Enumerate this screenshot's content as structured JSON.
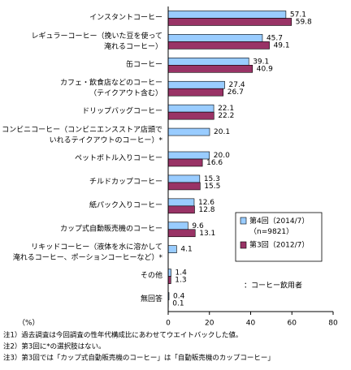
{
  "chart_data": {
    "type": "hbar",
    "categories": [
      "インスタントコーヒー",
      "レギュラーコーヒー（挽いた豆を使って\n淹れるコーヒー）",
      "缶コーヒー",
      "カフェ・飲食店などのコーヒー\n（テイクアウト含む）",
      "ドリップバッグコーヒー",
      "コンビニコーヒー（コンビニエンスストア店頭で\nいれるテイクアウトのコーヒー）*",
      "ペットボトル入りコーヒー",
      "チルドカップコーヒー",
      "紙パック入りコーヒー",
      "カップ式自動販売機のコーヒー",
      "リキッドコーヒー（液体を水に溶かして\n淹れるコーヒー、ポーションコーヒーなど）*",
      "その他",
      "無回答"
    ],
    "series": [
      {
        "name": "第4回（2014/7）\n（n=9821）",
        "color": "#99ccff",
        "values": [
          57.1,
          45.7,
          39.1,
          27.4,
          22.1,
          20.1,
          20.0,
          15.3,
          12.6,
          9.6,
          4.1,
          1.4,
          0.4
        ],
        "value_labels": [
          "57.1",
          "45.7",
          "39.1",
          "27.4",
          "22.1",
          "20.1",
          "20.0",
          "15.3",
          "12.6",
          "9.6",
          "4.1",
          "1.4",
          "0.4"
        ]
      },
      {
        "name": "第3回（2012/7）",
        "color": "#993366",
        "values": [
          59.8,
          49.1,
          40.9,
          26.7,
          22.2,
          null,
          16.6,
          15.5,
          12.8,
          13.1,
          null,
          1.3,
          0.1
        ],
        "value_labels": [
          "59.8",
          "49.1",
          "40.9",
          "26.7",
          "22.2",
          null,
          "16.6",
          "15.5",
          "12.8",
          "13.1",
          null,
          "1.3",
          "0.1"
        ]
      }
    ],
    "xlim": [
      0,
      80
    ],
    "xticks": [
      0,
      20,
      40,
      60,
      80
    ],
    "x_unit": "（%）",
    "annotation": "：コーヒー飲用者",
    "notes": [
      "注1）過去調査は今回調査の性年代構成比にあわせてウエイトバックした値。",
      "注2）第3回に*の選択肢はない。",
      "注3）第3回では「カップ式自動販売機のコーヒー」は「自動販売機のカップコーヒー」"
    ]
  }
}
